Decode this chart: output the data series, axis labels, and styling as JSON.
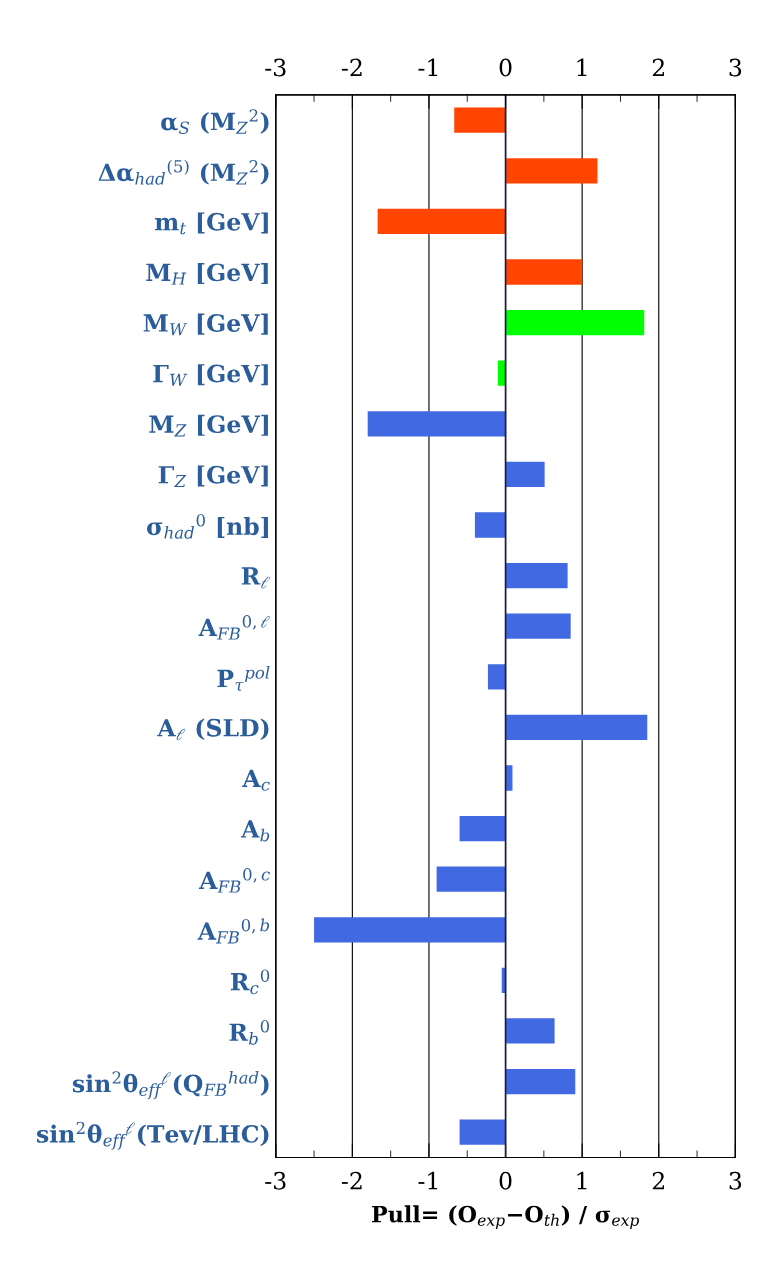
{
  "chart_data": {
    "type": "bar",
    "orientation": "horizontal",
    "xlabel": "Pull= (O$_{exp}$−O$_{th}$) / σ$_{exp}$",
    "categories": [
      "α$_{S}$ (M$_{Z}$$^{2}$)",
      "Δα$_{had}$$^{(5)}$ (M$_{Z}$$^{2}$)",
      "m$_{t}$ [GeV]",
      "M$_{H}$ [GeV]",
      "M$_{W}$ [GeV]",
      "Γ$_{W}$ [GeV]",
      "M$_{Z}$ [GeV]",
      "Γ$_{Z}$ [GeV]",
      "σ$_{had}$$^{0}$ [nb]",
      "R$_{ℓ}$",
      "A$_{FB}$$^{0,ℓ}$",
      "P$_{τ}$$^{pol}$",
      "A$_{ℓ}$ (SLD)",
      "A$_{c}$",
      "A$_{b}$",
      "A$_{FB}$$^{0,c}$",
      "A$_{FB}$$^{0,b}$",
      "R$_{c}$$^{0}$",
      "R$_{b}$$^{0}$",
      "sin$^{2}$θ$_{eff}$$^{ℓ}$(Q$_{FB}$$^{had}$)",
      "sin$^{2}$θ$_{eff}$$^{ℓ}$(Tev/LHC)"
    ],
    "values": [
      -0.67,
      1.2,
      -1.67,
      1.0,
      1.81,
      -0.1,
      -1.8,
      0.51,
      -0.4,
      0.81,
      0.85,
      -0.23,
      1.85,
      0.09,
      -0.6,
      -0.9,
      -2.5,
      -0.05,
      0.64,
      0.91,
      -0.6
    ],
    "colors": [
      "#ff4500",
      "#ff4500",
      "#ff4500",
      "#ff4500",
      "#00ff00",
      "#00ff00",
      "#4169e1",
      "#4169e1",
      "#4169e1",
      "#4169e1",
      "#4169e1",
      "#4169e1",
      "#4169e1",
      "#4169e1",
      "#4169e1",
      "#4169e1",
      "#4169e1",
      "#4169e1",
      "#4169e1",
      "#4169e1",
      "#4169e1"
    ],
    "xlim": [
      -3,
      3
    ],
    "xticks": [
      -3,
      {
        "value": -2.5,
        "label": null
      },
      -2,
      {
        "value": -1.5,
        "label": null
      },
      -1,
      {
        "value": -0.5,
        "label": null
      },
      0,
      {
        "value": 0.5,
        "label": null
      },
      1,
      {
        "value": 1.5,
        "label": null
      },
      2,
      {
        "value": 2.5,
        "label": null
      },
      3
    ],
    "x2lim": [
      -3,
      3
    ],
    "x2ticks": [
      -3,
      {
        "value": -2.5,
        "label": null
      },
      -2,
      {
        "value": -1.5,
        "label": null
      },
      -1,
      {
        "value": -0.5,
        "label": null
      },
      0,
      {
        "value": 0.5,
        "label": null
      },
      1,
      {
        "value": 1.5,
        "label": null
      },
      2,
      {
        "value": 2.5,
        "label": null
      },
      3
    ],
    "grid": "x",
    "ref_lines": [
      {
        "axis": "x",
        "value": 0,
        "color": "#1a1a4d"
      }
    ]
  }
}
